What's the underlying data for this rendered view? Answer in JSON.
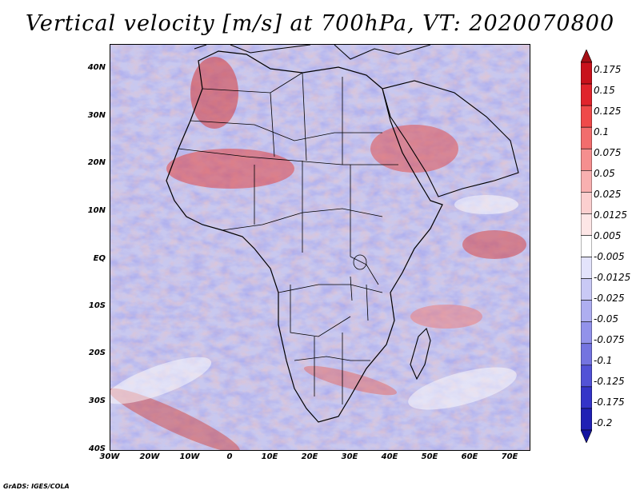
{
  "title": "Vertical velocity [m/s] at 700hPa, VT: 2020070800",
  "credit": "GrADS: IGES/COLA",
  "axes": {
    "lat_labels": [
      "40N",
      "30N",
      "20N",
      "10N",
      "EQ",
      "10S",
      "20S",
      "30S",
      "40S"
    ],
    "lon_labels": [
      "30W",
      "20W",
      "10W",
      "0",
      "10E",
      "20E",
      "30E",
      "40E",
      "50E",
      "60E",
      "70E"
    ]
  },
  "colorbar": {
    "labels": [
      "0.175",
      "0.15",
      "0.125",
      "0.1",
      "0.075",
      "0.05",
      "0.025",
      "0.0125",
      "0.005",
      "-0.005",
      "-0.0125",
      "-0.025",
      "-0.05",
      "-0.075",
      "-0.1",
      "-0.125",
      "-0.175",
      "-0.2"
    ],
    "colors": [
      "#a50f15",
      "#c8121c",
      "#e0242c",
      "#ef4a4a",
      "#f26d6d",
      "#f58f8f",
      "#f8b0b0",
      "#fbcfcf",
      "#fde6e6",
      "#ffffff",
      "#e3e3fb",
      "#c9c9f5",
      "#aeaef0",
      "#9292ea",
      "#7474e0",
      "#5252d6",
      "#3434c8",
      "#2020b4",
      "#1414a0"
    ]
  }
}
